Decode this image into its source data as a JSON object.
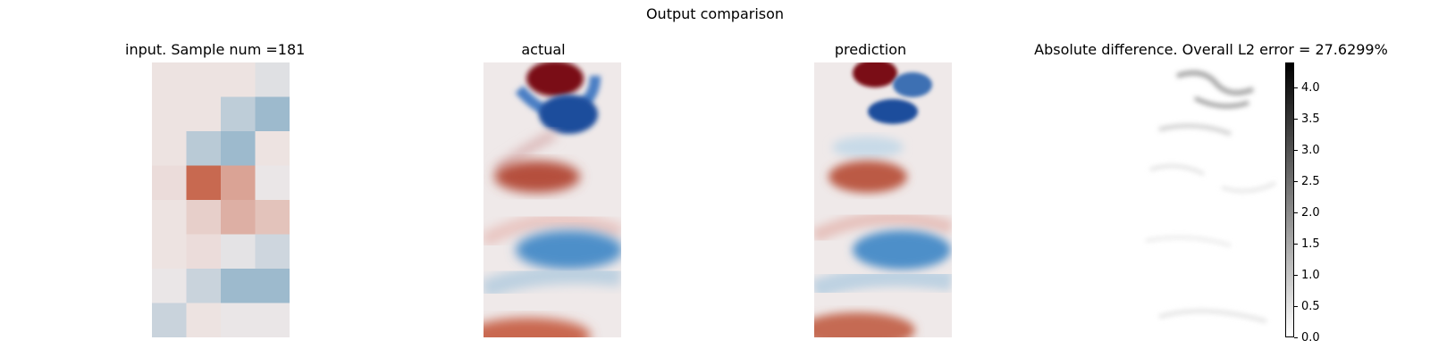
{
  "figure": {
    "suptitle": "Output comparison"
  },
  "panels": [
    {
      "title": "input. Sample num =181"
    },
    {
      "title": "actual"
    },
    {
      "title": "prediction"
    },
    {
      "title": "Absolute difference. Overall L2 error = 27.6299%"
    }
  ],
  "chart_data": [
    {
      "type": "heatmap",
      "title": "input. Sample num =181",
      "colormap": "diverging blue-white-red",
      "rows": 8,
      "cols": 4,
      "values": [
        [
          0.05,
          0.05,
          0.05,
          -0.15
        ],
        [
          0.05,
          0.05,
          -0.45,
          -0.75
        ],
        [
          0.05,
          -0.5,
          -0.75,
          0.05
        ],
        [
          0.1,
          1.0,
          0.55,
          -0.05
        ],
        [
          0.05,
          0.2,
          0.45,
          0.3
        ],
        [
          0.05,
          0.1,
          -0.1,
          -0.3
        ],
        [
          -0.05,
          -0.35,
          -0.75,
          -0.75
        ],
        [
          -0.35,
          0.05,
          -0.05,
          -0.05
        ]
      ]
    },
    {
      "type": "heatmap",
      "title": "actual",
      "colormap": "diverging blue-white-red"
    },
    {
      "type": "heatmap",
      "title": "prediction",
      "colormap": "diverging blue-white-red"
    },
    {
      "type": "heatmap",
      "title": "Absolute difference. Overall L2 error = 27.6299%",
      "colormap": "greys",
      "colorbar": {
        "range": [
          0,
          4.4
        ],
        "ticks": [
          "0.0",
          "0.5",
          "1.0",
          "1.5",
          "2.0",
          "2.5",
          "3.0",
          "3.5",
          "4.0"
        ]
      }
    }
  ],
  "colors": {
    "red_strong": "#8a1018",
    "blue_strong": "#1d4e9c",
    "neutral": "#efe9e9"
  }
}
